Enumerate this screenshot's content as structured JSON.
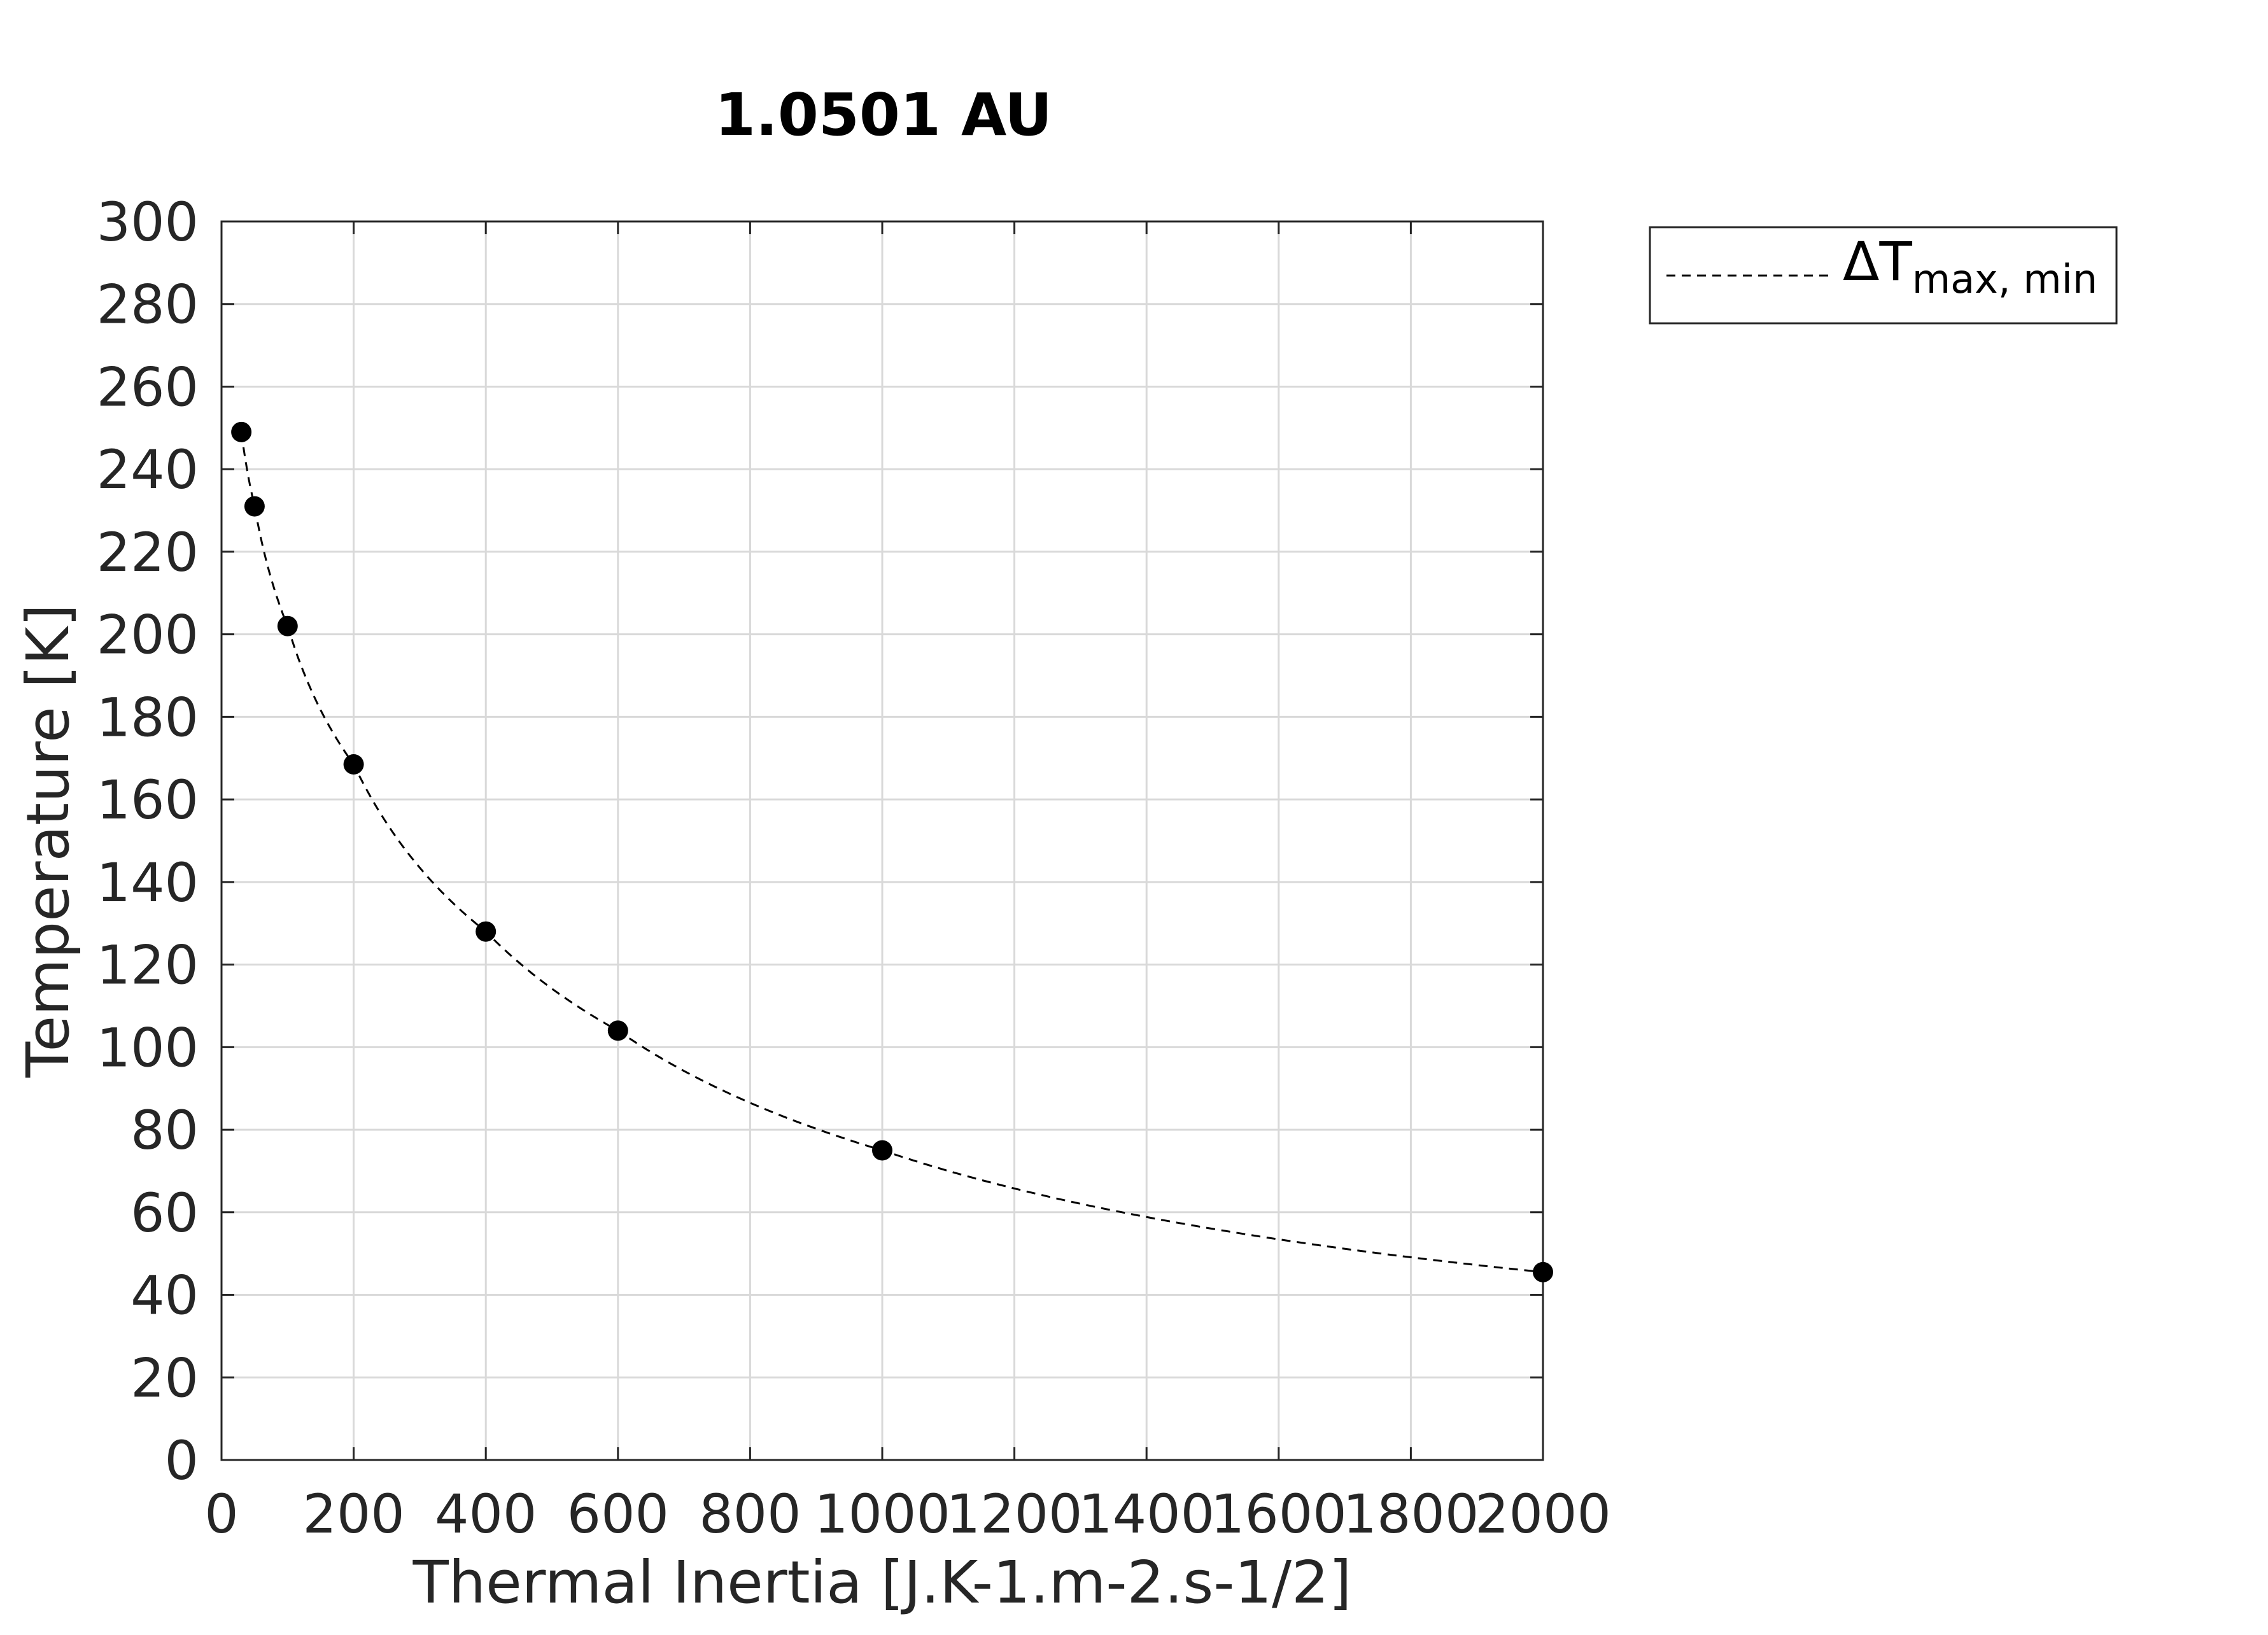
{
  "chart_data": {
    "type": "line",
    "title": "1.0501 AU",
    "xlabel": "Thermal Inertia [J.K-1.m-2.s-1/2]",
    "ylabel": "Temperature [K]",
    "xlim": [
      0,
      2000
    ],
    "ylim": [
      0,
      300
    ],
    "xticks": [
      0,
      200,
      400,
      600,
      800,
      1000,
      1200,
      1400,
      1600,
      1800,
      2000
    ],
    "yticks": [
      0,
      20,
      40,
      60,
      80,
      100,
      120,
      140,
      160,
      180,
      200,
      220,
      240,
      260,
      280,
      300
    ],
    "grid": true,
    "legend_position": "outside top-right",
    "legend": {
      "symbol": "ΔT",
      "subscript": "max, min"
    },
    "series": [
      {
        "name": "ΔT max, min",
        "line_style": "dashed",
        "marker": "filled-circle",
        "color": "#000000",
        "x": [
          30,
          50,
          100,
          200,
          400,
          600,
          1000,
          2000
        ],
        "y": [
          249,
          231,
          202,
          168.5,
          128,
          104,
          75,
          45.5
        ]
      }
    ]
  }
}
